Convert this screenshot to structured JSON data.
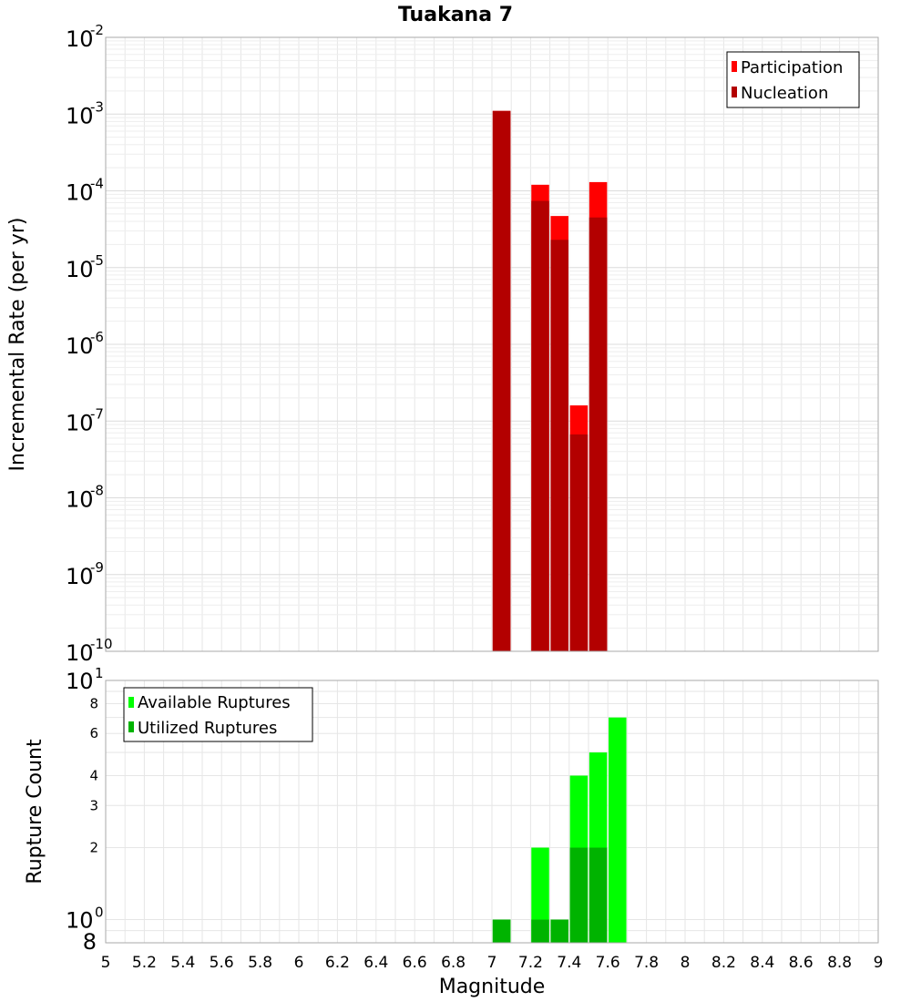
{
  "chart_data": [
    {
      "type": "bar",
      "title": "Tuakana 7",
      "ylabel": "Incremental Rate (per yr)",
      "yscale": "log",
      "ylim": [
        1e-10,
        0.01
      ],
      "xlim": [
        5,
        9
      ],
      "grid": true,
      "legend_position": "top-right",
      "y_ticks": [
        {
          "base": "10",
          "exp": "-2"
        },
        {
          "base": "10",
          "exp": "-3"
        },
        {
          "base": "10",
          "exp": "-4"
        },
        {
          "base": "10",
          "exp": "-5"
        },
        {
          "base": "10",
          "exp": "-6"
        },
        {
          "base": "10",
          "exp": "-7"
        },
        {
          "base": "10",
          "exp": "-8"
        },
        {
          "base": "10",
          "exp": "-9"
        },
        {
          "base": "10",
          "exp": "-10"
        }
      ],
      "series": [
        {
          "name": "Participation",
          "color": "#ff0000",
          "x": [
            7.05,
            7.25,
            7.35,
            7.45,
            7.55
          ],
          "values": [
            0.0011,
            0.00012,
            4.7e-05,
            1.6e-07,
            0.00013
          ]
        },
        {
          "name": "Nucleation",
          "color": "#b30000",
          "x": [
            7.05,
            7.25,
            7.35,
            7.45,
            7.55
          ],
          "values": [
            0.0011,
            7.4e-05,
            2.3e-05,
            6.7e-08,
            4.5e-05
          ]
        }
      ]
    },
    {
      "type": "bar",
      "xlabel": "Magnitude",
      "ylabel": "Rupture Count",
      "yscale": "log",
      "ylim": [
        0.8,
        10
      ],
      "xlim": [
        5,
        9
      ],
      "grid": true,
      "legend_position": "top-left",
      "x_ticks": [
        "5",
        "5.2",
        "5.4",
        "5.6",
        "5.8",
        "6",
        "6.2",
        "6.4",
        "6.6",
        "6.8",
        "7",
        "7.2",
        "7.4",
        "7.6",
        "7.8",
        "8",
        "8.2",
        "8.4",
        "8.6",
        "8.8",
        "9"
      ],
      "y_major_ticks": [
        {
          "base": "10",
          "exp": "1"
        },
        {
          "base": "10",
          "exp": "0"
        }
      ],
      "y_minor_ticks": [
        "8",
        "6",
        "4",
        "3",
        "2"
      ],
      "y_bottom_label": "8",
      "series": [
        {
          "name": "Available Ruptures",
          "color": "#00ff00",
          "x": [
            7.05,
            7.25,
            7.35,
            7.45,
            7.55,
            7.65
          ],
          "values": [
            1,
            2,
            1,
            4,
            5,
            7
          ]
        },
        {
          "name": "Utilized Ruptures",
          "color": "#00b300",
          "x": [
            7.05,
            7.25,
            7.35,
            7.45,
            7.55,
            7.65
          ],
          "values": [
            1,
            1,
            1,
            2,
            2,
            0
          ]
        }
      ]
    }
  ]
}
